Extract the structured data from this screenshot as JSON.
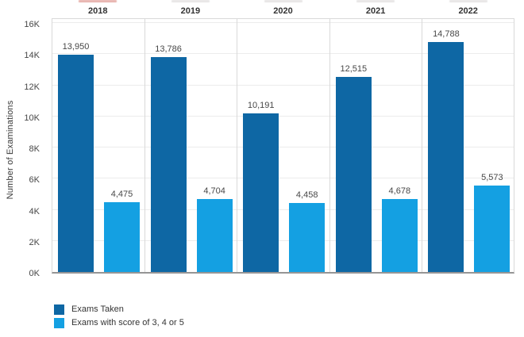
{
  "chart_data": {
    "type": "bar",
    "title": "",
    "categories": [
      "2018",
      "2019",
      "2020",
      "2021",
      "2022"
    ],
    "series": [
      {
        "name": "Exams Taken",
        "color": "#0e67a4",
        "values": [
          13950,
          13786,
          10191,
          12515,
          14788
        ],
        "labels": [
          "13,950",
          "13,786",
          "10,191",
          "12,515",
          "14,788"
        ]
      },
      {
        "name": "Exams with score of 3, 4 or 5",
        "color": "#14a0e2",
        "values": [
          4475,
          4704,
          4458,
          4678,
          5573
        ],
        "labels": [
          "4,475",
          "4,704",
          "4,458",
          "4,678",
          "5,573"
        ]
      }
    ],
    "ylabel": "Number of Examinations",
    "xlabel": "",
    "y_ticks": [
      "16K",
      "14K",
      "12K",
      "10K",
      "8K",
      "6K",
      "4K",
      "2K",
      "0K"
    ],
    "ylim": [
      0,
      16000
    ],
    "grid": true,
    "legend_position": "bottom-left"
  },
  "colors": {
    "dark_blue": "#0e67a4",
    "light_blue": "#14a0e2",
    "gridline": "#ececec",
    "panel_border": "#d9d9d9",
    "baseline": "#959595"
  }
}
